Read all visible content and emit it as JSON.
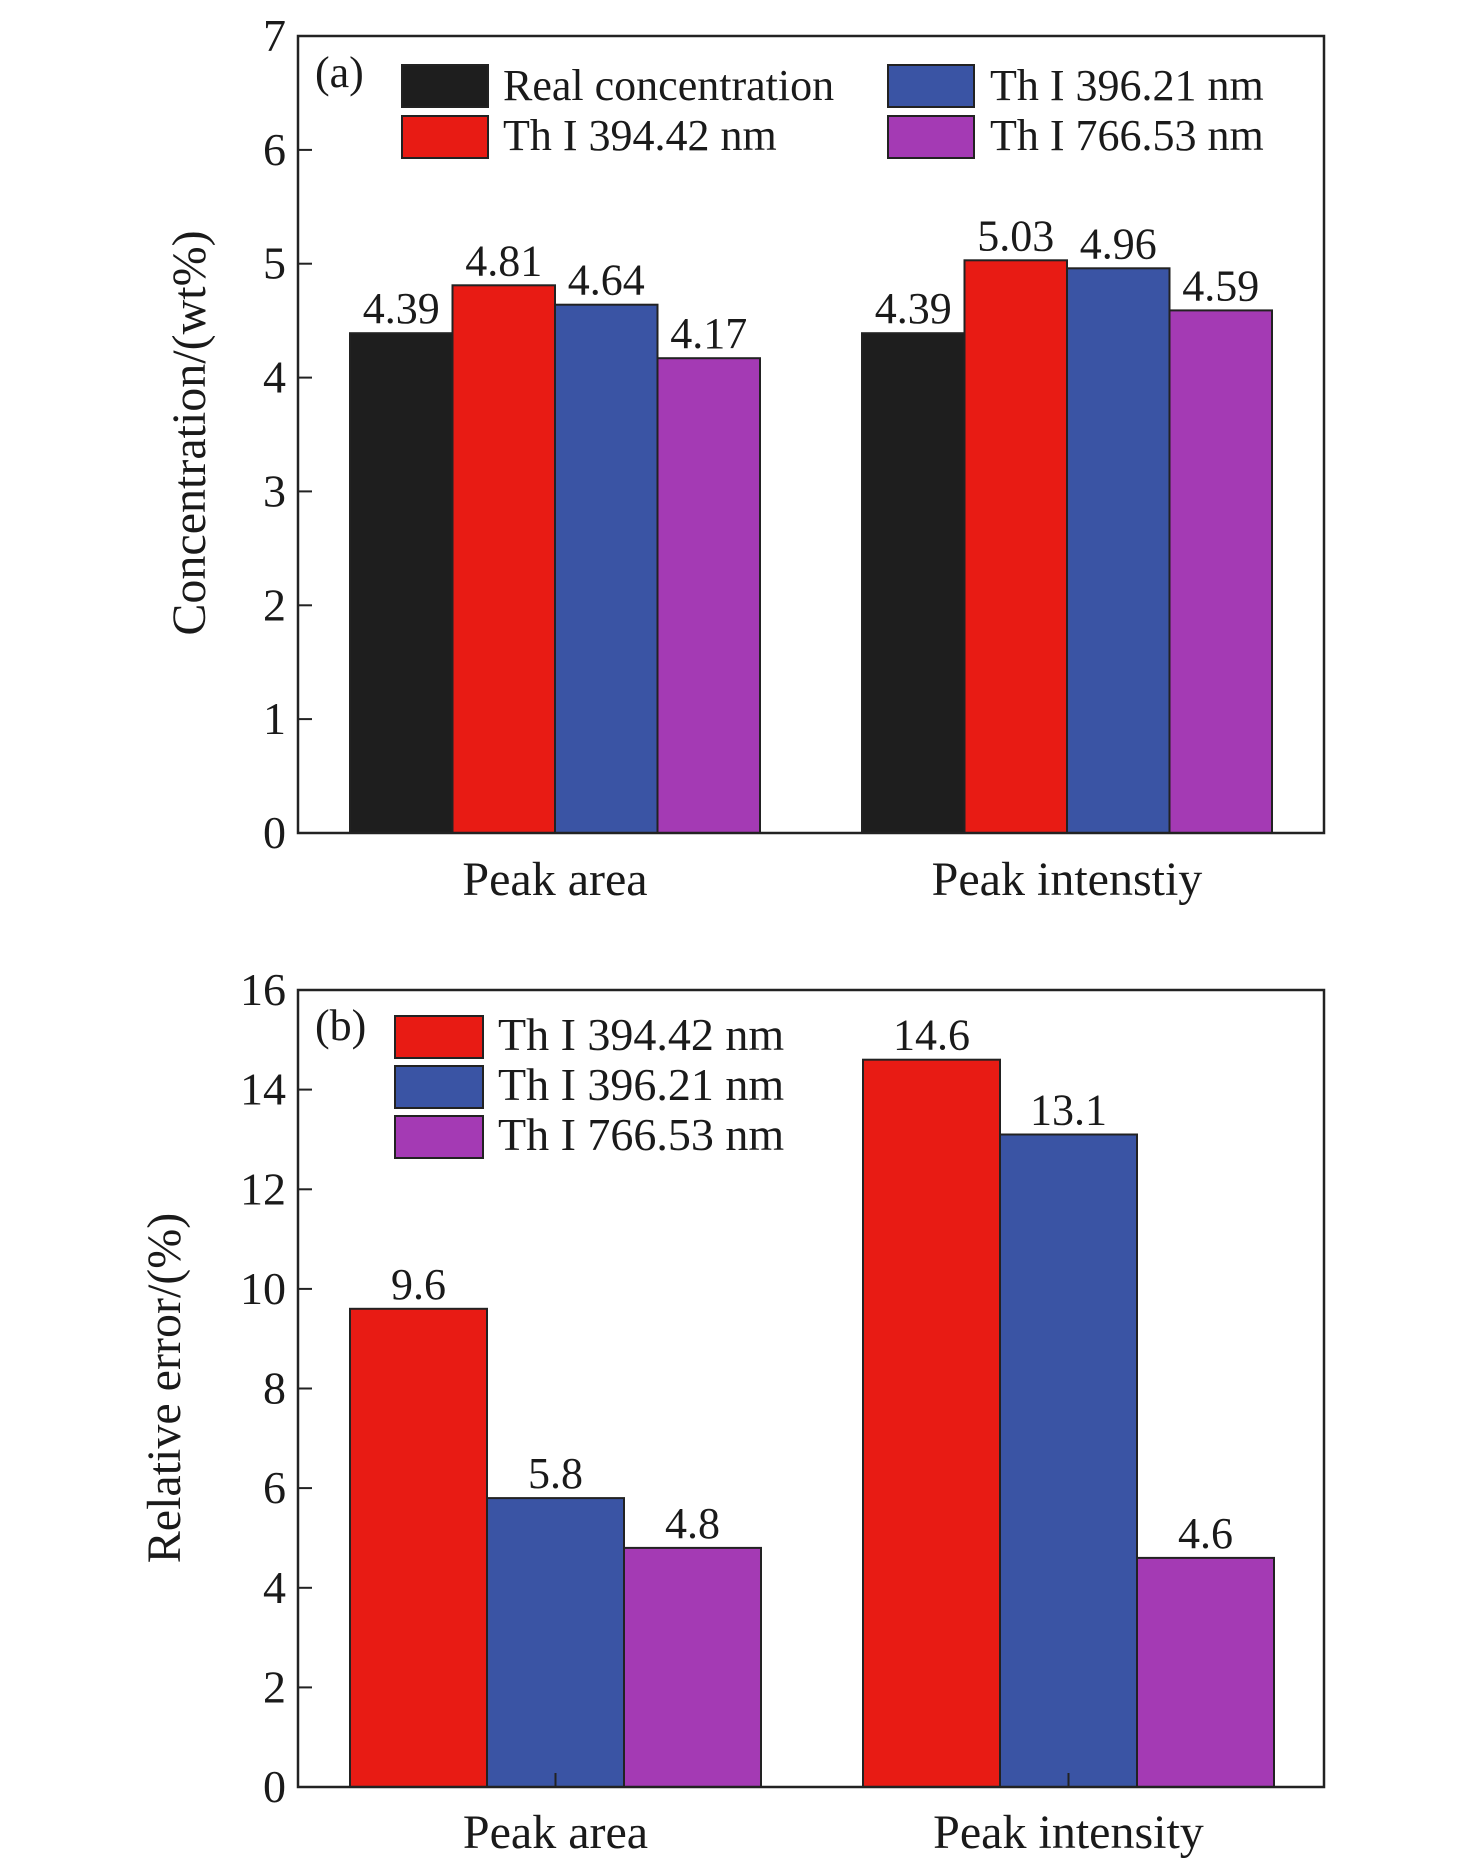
{
  "chart_data": [
    {
      "type": "bar",
      "panel_label": "(a)",
      "categories": [
        "Peak area",
        "Peak intenstiy"
      ],
      "ylabel": "Concentration/(wt%)",
      "ylim": [
        0,
        7
      ],
      "yticks": [
        0,
        1,
        2,
        3,
        4,
        5,
        6,
        7
      ],
      "grid": false,
      "legend_position": "top",
      "series": [
        {
          "name": "Real concentration",
          "color": "#1e1e1e",
          "values": [
            4.39,
            4.39
          ],
          "labels": [
            "4.39",
            "4.39"
          ]
        },
        {
          "name": "Th I 394.42 nm",
          "color": "#e81b14",
          "values": [
            4.81,
            5.03
          ],
          "labels": [
            "4.81",
            "5.03"
          ]
        },
        {
          "name": "Th I 396.21 nm",
          "color": "#3a54a4",
          "values": [
            4.64,
            4.96
          ],
          "labels": [
            "4.64",
            "4.96"
          ]
        },
        {
          "name": "Th I 766.53 nm",
          "color": "#a43ab4",
          "values": [
            4.17,
            4.59
          ],
          "labels": [
            "4.17",
            "4.59"
          ]
        }
      ]
    },
    {
      "type": "bar",
      "panel_label": "(b)",
      "categories": [
        "Peak area",
        "Peak intensity"
      ],
      "ylabel": "Relative error/(%)",
      "ylim": [
        0,
        16
      ],
      "yticks": [
        0,
        2,
        4,
        6,
        8,
        10,
        12,
        14,
        16
      ],
      "grid": false,
      "legend_position": "top-left",
      "series": [
        {
          "name": "Th I 394.42 nm",
          "color": "#e81b14",
          "values": [
            9.6,
            14.6
          ],
          "labels": [
            "9.6",
            "14.6"
          ]
        },
        {
          "name": "Th I 396.21 nm",
          "color": "#3a54a4",
          "values": [
            5.8,
            13.1
          ],
          "labels": [
            "5.8",
            "13.1"
          ]
        },
        {
          "name": "Th I 766.53 nm",
          "color": "#a43ab4",
          "values": [
            4.8,
            4.6
          ],
          "labels": [
            "4.8",
            "4.6"
          ]
        }
      ]
    }
  ]
}
